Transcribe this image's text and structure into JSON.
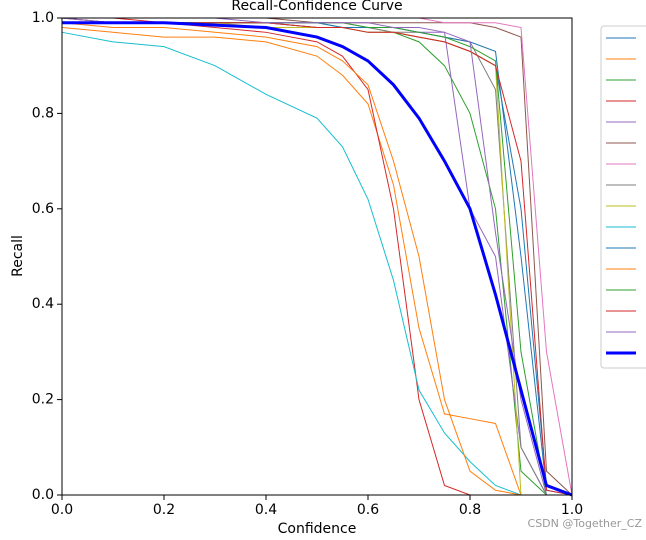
{
  "chart_data": {
    "type": "line",
    "title": "Recall-Confidence Curve",
    "x_label": "Confidence",
    "y_label": "Recall",
    "watermark": "CSDN @Together_CZ",
    "x": [
      0,
      0.1,
      0.2,
      0.3,
      0.4,
      0.5,
      0.55,
      0.6,
      0.65,
      0.7,
      0.75,
      0.8,
      0.85,
      0.9,
      0.95,
      1.0
    ],
    "series": [
      {
        "color": "#1f77b4",
        "width": 1,
        "values": [
          1.0,
          0.99,
          0.99,
          0.99,
          0.99,
          0.98,
          0.98,
          0.97,
          0.97,
          0.96,
          0.95,
          0.93,
          0.9,
          0.6,
          0.02,
          0
        ]
      },
      {
        "color": "#ff7f0e",
        "width": 1,
        "values": [
          0.98,
          0.97,
          0.96,
          0.96,
          0.95,
          0.92,
          0.88,
          0.82,
          0.65,
          0.35,
          0.17,
          0.16,
          0.15,
          0,
          0,
          0
        ]
      },
      {
        "color": "#2ca02c",
        "width": 1,
        "values": [
          0.99,
          0.99,
          0.99,
          0.99,
          0.99,
          0.99,
          0.98,
          0.98,
          0.97,
          0.95,
          0.9,
          0.8,
          0.6,
          0.05,
          0,
          0
        ]
      },
      {
        "color": "#d62728",
        "width": 1,
        "values": [
          1.0,
          0.99,
          0.99,
          0.98,
          0.97,
          0.95,
          0.92,
          0.85,
          0.6,
          0.2,
          0.02,
          0,
          0,
          0,
          0,
          0
        ]
      },
      {
        "color": "#9467bd",
        "width": 1,
        "values": [
          1.0,
          0.99,
          0.99,
          0.99,
          0.99,
          0.99,
          0.99,
          0.98,
          0.98,
          0.97,
          0.97,
          0.6,
          0.5,
          0.1,
          0,
          0
        ]
      },
      {
        "color": "#8c564b",
        "width": 1,
        "values": [
          1.0,
          1.0,
          1.0,
          1.0,
          1.0,
          0.99,
          0.99,
          0.99,
          0.99,
          0.99,
          0.99,
          0.99,
          0.98,
          0.96,
          0.05,
          0
        ]
      },
      {
        "color": "#e377c2",
        "width": 1,
        "values": [
          1.0,
          1.0,
          1.0,
          1.0,
          1.0,
          1.0,
          1.0,
          1.0,
          1.0,
          1.0,
          0.99,
          0.99,
          0.99,
          0.98,
          0.3,
          0
        ]
      },
      {
        "color": "#7f7f7f",
        "width": 1,
        "values": [
          0.99,
          0.99,
          0.99,
          0.99,
          0.99,
          0.98,
          0.98,
          0.98,
          0.97,
          0.97,
          0.96,
          0.95,
          0.85,
          0.1,
          0,
          0
        ]
      },
      {
        "color": "#bcbd22",
        "width": 1,
        "values": [
          0.99,
          0.99,
          0.99,
          0.99,
          0.98,
          0.98,
          0.98,
          0.97,
          0.97,
          0.96,
          0.95,
          0.93,
          0.9,
          0,
          0,
          0
        ]
      },
      {
        "color": "#17becf",
        "width": 1,
        "values": [
          0.97,
          0.95,
          0.94,
          0.9,
          0.84,
          0.79,
          0.73,
          0.62,
          0.45,
          0.22,
          0.13,
          0.07,
          0.02,
          0,
          0,
          0
        ]
      },
      {
        "color": "#1f77b4",
        "width": 1,
        "values": [
          0.99,
          0.99,
          0.99,
          0.99,
          0.99,
          0.99,
          0.98,
          0.98,
          0.98,
          0.97,
          0.96,
          0.95,
          0.93,
          0.5,
          0.01,
          0
        ]
      },
      {
        "color": "#ff7f0e",
        "width": 1,
        "values": [
          0.99,
          0.98,
          0.98,
          0.97,
          0.96,
          0.94,
          0.91,
          0.86,
          0.7,
          0.5,
          0.2,
          0.05,
          0.01,
          0,
          0,
          0
        ]
      },
      {
        "color": "#2ca02c",
        "width": 1,
        "values": [
          0.99,
          0.99,
          0.99,
          0.99,
          0.99,
          0.99,
          0.99,
          0.98,
          0.98,
          0.97,
          0.96,
          0.94,
          0.91,
          0.3,
          0,
          0
        ]
      },
      {
        "color": "#d62728",
        "width": 1,
        "values": [
          1.0,
          1.0,
          0.99,
          0.99,
          0.99,
          0.98,
          0.98,
          0.97,
          0.97,
          0.96,
          0.95,
          0.93,
          0.9,
          0.7,
          0.01,
          0
        ]
      },
      {
        "color": "#9467bd",
        "width": 1,
        "values": [
          1.0,
          1.0,
          1.0,
          1.0,
          0.99,
          0.99,
          0.99,
          0.99,
          0.98,
          0.98,
          0.97,
          0.95,
          0.55,
          0.2,
          0,
          0
        ]
      },
      {
        "color": "#0000ff",
        "width": 3,
        "values": [
          0.99,
          0.99,
          0.99,
          0.985,
          0.98,
          0.96,
          0.94,
          0.91,
          0.86,
          0.79,
          0.7,
          0.6,
          0.42,
          0.22,
          0.02,
          0
        ]
      }
    ],
    "xlim": [
      0,
      1
    ],
    "ylim": [
      0,
      1
    ],
    "xticks": [
      {
        "value": 0,
        "label": "0.0"
      },
      {
        "value": 0.2,
        "label": "0.2"
      },
      {
        "value": 0.4,
        "label": "0.4"
      },
      {
        "value": 0.6,
        "label": "0.6"
      },
      {
        "value": 0.8,
        "label": "0.8"
      },
      {
        "value": 1,
        "label": "1.0"
      }
    ],
    "yticks": [
      {
        "value": 0,
        "label": "0.0"
      },
      {
        "value": 0.2,
        "label": "0.2"
      },
      {
        "value": 0.4,
        "label": "0.4"
      },
      {
        "value": 0.6,
        "label": "0.6"
      },
      {
        "value": 0.8,
        "label": "0.8"
      },
      {
        "value": 1,
        "label": "1.0"
      }
    ],
    "legend": "upper right outside"
  }
}
